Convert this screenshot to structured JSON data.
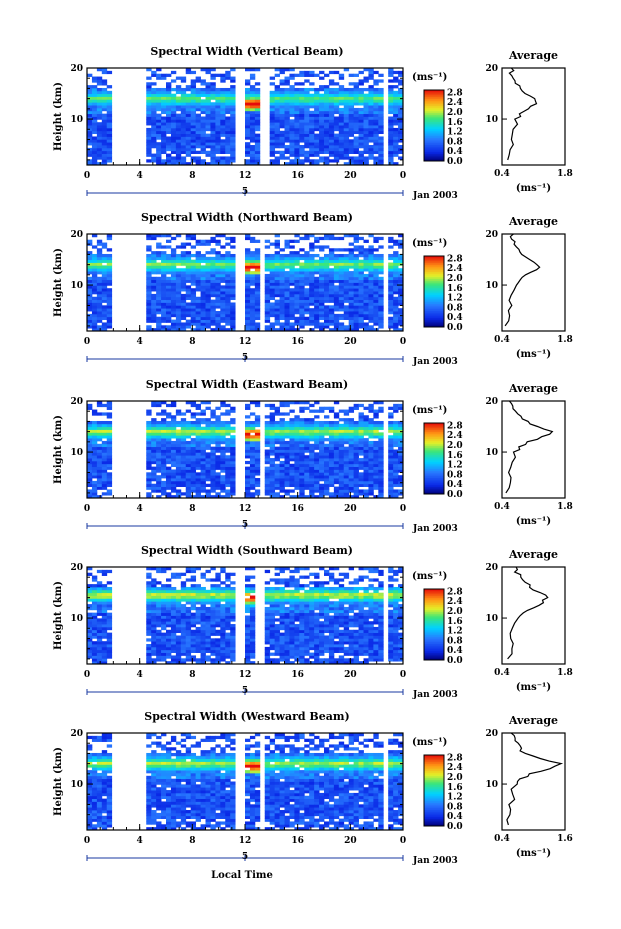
{
  "figure": {
    "date_label": "Jan 2003",
    "local_time_label": "Local Time",
    "average_title": "Average",
    "unit_label": "(ms⁻¹)",
    "colorbar_ticks": [
      "2.8",
      "2.4",
      "2.0",
      "1.6",
      "1.2",
      "0.8",
      "0.4",
      "0.0"
    ]
  },
  "chart_data": [
    {
      "type": "heatmap",
      "title": "Spectral Width (Vertical Beam)",
      "ylabel": "Height (km)",
      "xlabel": "Local Time",
      "x_ticks": [
        "0",
        "4",
        "8",
        "12",
        "16",
        "20",
        "0"
      ],
      "y_ticks": [
        "20",
        "10"
      ],
      "day_tick": "5",
      "colorbar": {
        "label": "(ms⁻¹)",
        "ticks": [
          2.8,
          2.4,
          2.0,
          1.6,
          1.2,
          0.8,
          0.4,
          0.0
        ]
      },
      "data_gaps_hours": [
        [
          2.0,
          4.6
        ],
        [
          11.2,
          12.0
        ],
        [
          13.2,
          14.0
        ],
        [
          22.4,
          22.9
        ]
      ],
      "enhanced_layers": [
        {
          "height_km": 13,
          "hours": [
            12,
            13.2
          ],
          "value": 2.8
        },
        {
          "height_km": 14,
          "hours": [
            0,
            24
          ],
          "value": 1.4
        }
      ],
      "average_profile": {
        "xlabel": "(ms⁻¹)",
        "xlim": [
          0.4,
          1.8
        ],
        "x_ticks": [
          "0.4",
          "1.8"
        ],
        "y_ticks": [
          "20",
          "10"
        ],
        "heights_km": [
          2,
          4,
          6,
          8,
          10,
          11,
          12,
          13,
          14,
          15,
          16,
          17,
          18,
          19,
          20
        ],
        "values": [
          0.55,
          0.6,
          0.6,
          0.65,
          0.72,
          0.8,
          0.95,
          1.15,
          1.1,
          0.95,
          0.8,
          0.7,
          0.65,
          0.6,
          0.6
        ]
      }
    },
    {
      "type": "heatmap",
      "title": "Spectral Width (Northward Beam)",
      "ylabel": "Height (km)",
      "xlabel": "Local Time",
      "x_ticks": [
        "0",
        "4",
        "8",
        "12",
        "16",
        "20",
        "0"
      ],
      "y_ticks": [
        "20",
        "10"
      ],
      "day_tick": "5",
      "colorbar": {
        "label": "(ms⁻¹)",
        "ticks": [
          2.8,
          2.4,
          2.0,
          1.6,
          1.2,
          0.8,
          0.4,
          0.0
        ]
      },
      "data_gaps_hours": [
        [
          2.0,
          4.6
        ],
        [
          11.2,
          12.0
        ],
        [
          13.2,
          13.6
        ],
        [
          22.4,
          22.9
        ]
      ],
      "enhanced_layers": [
        {
          "height_km": 13.5,
          "hours": [
            12,
            13.2
          ],
          "value": 2.8
        },
        {
          "height_km": 14,
          "hours": [
            0,
            24
          ],
          "value": 1.5
        }
      ],
      "average_profile": {
        "xlabel": "(ms⁻¹)",
        "xlim": [
          0.4,
          1.8
        ],
        "x_ticks": [
          "0.4",
          "1.8"
        ],
        "y_ticks": [
          "20",
          "10"
        ],
        "heights_km": [
          2,
          4,
          6,
          8,
          10,
          11,
          12,
          13,
          14,
          15,
          16,
          17,
          18,
          19,
          20
        ],
        "values": [
          0.5,
          0.55,
          0.58,
          0.62,
          0.7,
          0.78,
          0.95,
          1.2,
          1.15,
          1.0,
          0.85,
          0.75,
          0.7,
          0.65,
          0.62
        ]
      }
    },
    {
      "type": "heatmap",
      "title": "Spectral Width (Eastward Beam)",
      "ylabel": "Height (km)",
      "xlabel": "Local Time",
      "x_ticks": [
        "0",
        "4",
        "8",
        "12",
        "16",
        "20",
        "0"
      ],
      "y_ticks": [
        "20",
        "10"
      ],
      "day_tick": "5",
      "colorbar": {
        "label": "(ms⁻¹)",
        "ticks": [
          2.8,
          2.4,
          2.0,
          1.6,
          1.2,
          0.8,
          0.4,
          0.0
        ]
      },
      "data_gaps_hours": [
        [
          2.0,
          4.6
        ],
        [
          11.2,
          12.0
        ],
        [
          13.2,
          13.6
        ],
        [
          22.4,
          22.9
        ]
      ],
      "enhanced_layers": [
        {
          "height_km": 13.5,
          "hours": [
            12,
            13.2
          ],
          "value": 2.8
        },
        {
          "height_km": 14,
          "hours": [
            0,
            24
          ],
          "value": 1.6
        }
      ],
      "average_profile": {
        "xlabel": "(ms⁻¹)",
        "xlim": [
          0.4,
          1.8
        ],
        "x_ticks": [
          "0.4",
          "1.8"
        ],
        "y_ticks": [
          "20",
          "10"
        ],
        "heights_km": [
          2,
          4,
          6,
          8,
          10,
          11,
          12,
          13,
          14,
          15,
          16,
          17,
          18,
          19,
          20
        ],
        "values": [
          0.5,
          0.55,
          0.58,
          0.6,
          0.68,
          0.8,
          1.0,
          1.3,
          1.5,
          1.2,
          0.95,
          0.8,
          0.7,
          0.65,
          0.6
        ]
      }
    },
    {
      "type": "heatmap",
      "title": "Spectral Width (Southward Beam)",
      "ylabel": "Height (km)",
      "xlabel": "Local Time",
      "x_ticks": [
        "0",
        "4",
        "8",
        "12",
        "16",
        "20",
        "0"
      ],
      "y_ticks": [
        "20",
        "10"
      ],
      "day_tick": "5",
      "colorbar": {
        "label": "(ms⁻¹)",
        "ticks": [
          2.8,
          2.4,
          2.0,
          1.6,
          1.2,
          0.8,
          0.4,
          0.0
        ]
      },
      "data_gaps_hours": [
        [
          2.0,
          4.6
        ],
        [
          11.2,
          12.0
        ],
        [
          12.8,
          13.4
        ],
        [
          22.4,
          22.9
        ]
      ],
      "enhanced_layers": [
        {
          "height_km": 14,
          "hours": [
            12,
            13.2
          ],
          "value": 2.6
        },
        {
          "height_km": 14.5,
          "hours": [
            0,
            24
          ],
          "value": 1.7
        }
      ],
      "average_profile": {
        "xlabel": "(ms⁻¹)",
        "xlim": [
          0.4,
          1.8
        ],
        "x_ticks": [
          "0.4",
          "1.8"
        ],
        "y_ticks": [
          "20",
          "10"
        ],
        "heights_km": [
          2,
          4,
          6,
          8,
          10,
          11,
          12,
          13,
          14,
          15,
          16,
          17,
          18,
          19,
          20
        ],
        "values": [
          0.55,
          0.6,
          0.62,
          0.66,
          0.75,
          0.9,
          1.1,
          1.3,
          1.4,
          1.25,
          1.05,
          0.9,
          0.8,
          0.72,
          0.68
        ]
      }
    },
    {
      "type": "heatmap",
      "title": "Spectral Width (Westward Beam)",
      "ylabel": "Height (km)",
      "xlabel": "Local Time",
      "x_ticks": [
        "0",
        "4",
        "8",
        "12",
        "16",
        "20",
        "0"
      ],
      "y_ticks": [
        "20",
        "10"
      ],
      "day_tick": "5",
      "colorbar": {
        "label": "(ms⁻¹)",
        "ticks": [
          2.8,
          2.4,
          2.0,
          1.6,
          1.2,
          0.8,
          0.4,
          0.0
        ]
      },
      "data_gaps_hours": [
        [
          2.0,
          4.6
        ],
        [
          11.2,
          12.0
        ],
        [
          13.2,
          13.6
        ],
        [
          22.4,
          22.9
        ]
      ],
      "enhanced_layers": [
        {
          "height_km": 13.5,
          "hours": [
            12,
            13.2
          ],
          "value": 2.8
        },
        {
          "height_km": 14,
          "hours": [
            0,
            24
          ],
          "value": 1.6
        }
      ],
      "average_profile": {
        "xlabel": "(ms⁻¹)",
        "xlim": [
          0.4,
          1.6
        ],
        "x_ticks": [
          "0.4",
          "1.6"
        ],
        "y_ticks": [
          "20",
          "10"
        ],
        "heights_km": [
          2,
          4,
          6,
          8,
          10,
          11,
          12,
          13,
          14,
          15,
          16,
          17,
          18,
          19,
          20
        ],
        "values": [
          0.5,
          0.55,
          0.56,
          0.6,
          0.66,
          0.75,
          0.95,
          1.3,
          1.55,
          1.1,
          0.85,
          0.75,
          0.7,
          0.65,
          0.6
        ]
      }
    }
  ]
}
